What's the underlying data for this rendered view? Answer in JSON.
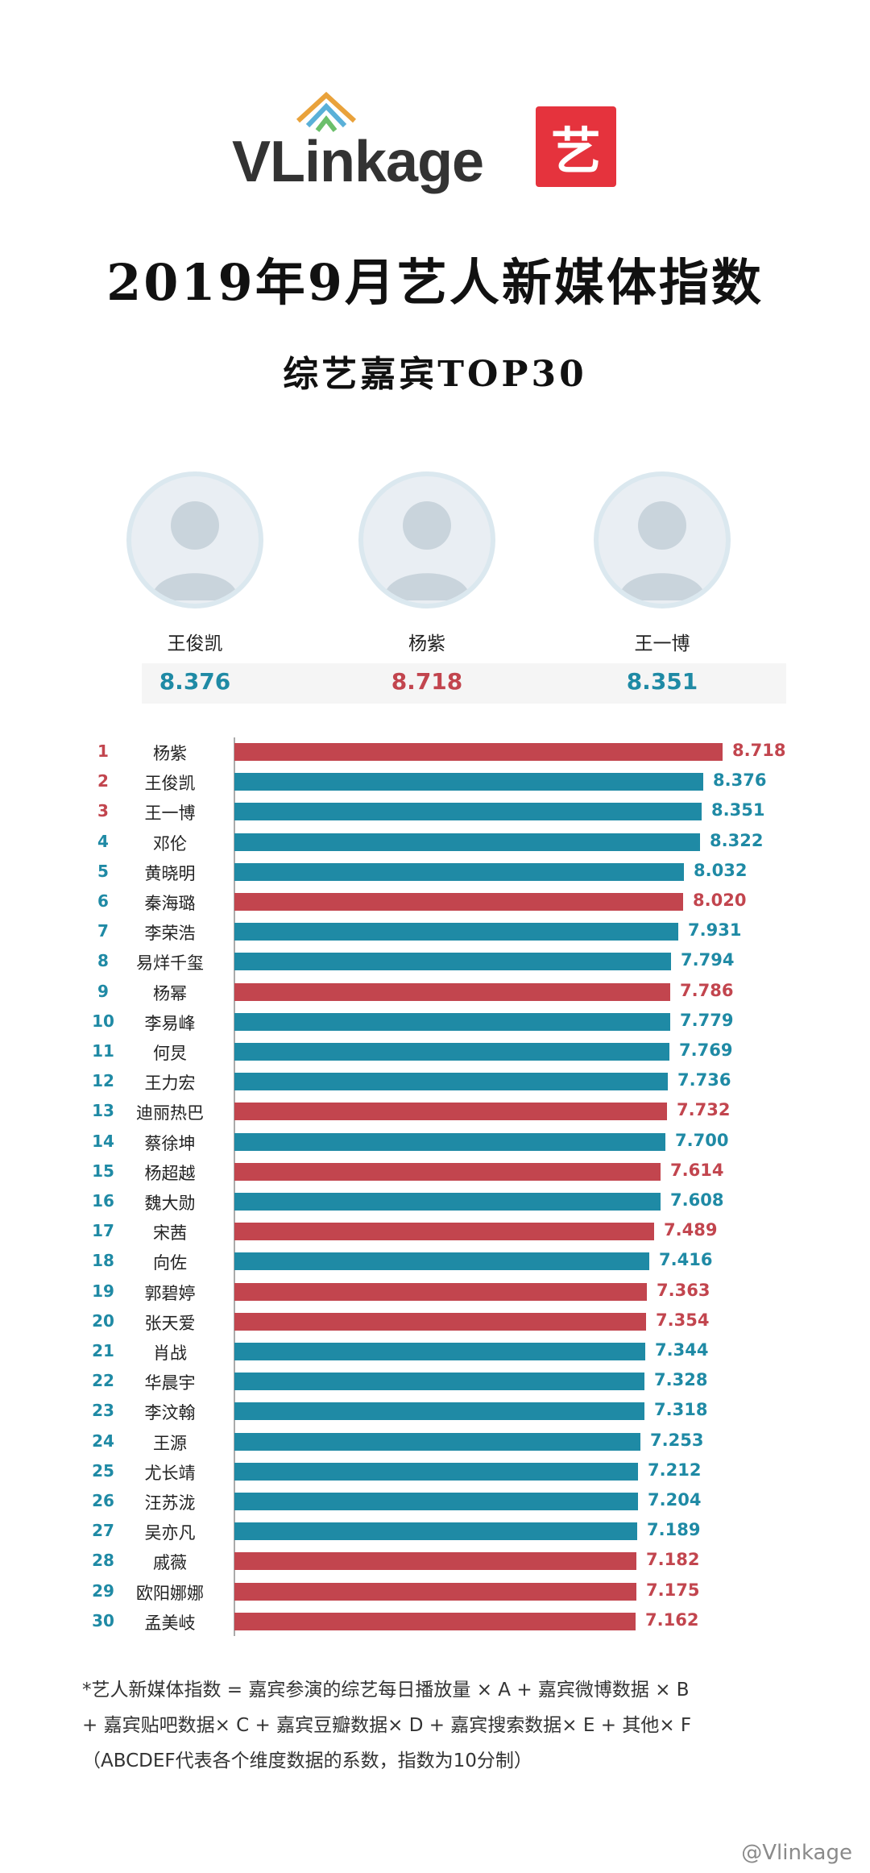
{
  "brand": {
    "wordmark": "VLinkage",
    "badge": "艺"
  },
  "title": "2019年9月艺人新媒体指数",
  "subtitle": "综艺嘉宾TOP30",
  "podium": [
    {
      "name": "王俊凯",
      "score": "8.376",
      "color": "#1f8aa5"
    },
    {
      "name": "杨紫",
      "score": "8.718",
      "color": "#c2454e"
    },
    {
      "name": "王一博",
      "score": "8.351",
      "color": "#1f8aa5"
    }
  ],
  "colors": {
    "red": "#c2454e",
    "teal": "#1f8aa5"
  },
  "chart_data": {
    "type": "bar",
    "orientation": "horizontal",
    "categories": [
      "杨紫",
      "王俊凯",
      "王一博",
      "邓伦",
      "黄晓明",
      "秦海璐",
      "李荣浩",
      "易烊千玺",
      "杨幂",
      "李易峰",
      "何炅",
      "王力宏",
      "迪丽热巴",
      "蔡徐坤",
      "杨超越",
      "魏大勋",
      "宋茜",
      "向佐",
      "郭碧婷",
      "张天爱",
      "肖战",
      "华晨宇",
      "李汶翰",
      "王源",
      "尤长靖",
      "汪苏泷",
      "吴亦凡",
      "戚薇",
      "欧阳娜娜",
      "孟美岐"
    ],
    "ranks": [
      "1",
      "2",
      "3",
      "4",
      "5",
      "6",
      "7",
      "8",
      "9",
      "10",
      "11",
      "12",
      "13",
      "14",
      "15",
      "16",
      "17",
      "18",
      "19",
      "20",
      "21",
      "22",
      "23",
      "24",
      "25",
      "26",
      "27",
      "28",
      "29",
      "30"
    ],
    "values": [
      8.718,
      8.376,
      8.351,
      8.322,
      8.032,
      8.02,
      7.931,
      7.794,
      7.786,
      7.779,
      7.769,
      7.736,
      7.732,
      7.7,
      7.614,
      7.608,
      7.489,
      7.416,
      7.363,
      7.354,
      7.344,
      7.328,
      7.318,
      7.253,
      7.212,
      7.204,
      7.189,
      7.182,
      7.175,
      7.162
    ],
    "labels": [
      "8.718",
      "8.376",
      "8.351",
      "8.322",
      "8.032",
      "8.020",
      "7.931",
      "7.794",
      "7.786",
      "7.779",
      "7.769",
      "7.736",
      "7.732",
      "7.700",
      "7.614",
      "7.608",
      "7.489",
      "7.416",
      "7.363",
      "7.354",
      "7.344",
      "7.328",
      "7.318",
      "7.253",
      "7.212",
      "7.204",
      "7.189",
      "7.182",
      "7.175",
      "7.162"
    ],
    "bar_colors": [
      "red",
      "teal",
      "teal",
      "teal",
      "teal",
      "red",
      "teal",
      "teal",
      "red",
      "teal",
      "teal",
      "teal",
      "red",
      "teal",
      "red",
      "teal",
      "red",
      "teal",
      "red",
      "red",
      "teal",
      "teal",
      "teal",
      "teal",
      "teal",
      "teal",
      "teal",
      "red",
      "red",
      "red"
    ],
    "rank_colors": [
      "red",
      "red",
      "red",
      "teal",
      "teal",
      "teal",
      "teal",
      "teal",
      "teal",
      "teal",
      "teal",
      "teal",
      "teal",
      "teal",
      "teal",
      "teal",
      "teal",
      "teal",
      "teal",
      "teal",
      "teal",
      "teal",
      "teal",
      "teal",
      "teal",
      "teal",
      "teal",
      "teal",
      "teal",
      "teal"
    ],
    "title": "",
    "xlabel": "",
    "ylabel": "",
    "xlim": [
      0,
      8.718
    ],
    "grid": false,
    "legend": "none"
  },
  "footnote": {
    "line1": "*艺人新媒体指数 = 嘉宾参演的综艺每日播放量 × A + 嘉宾微博数据 × B",
    "line2": "+ 嘉宾贴吧数据× C + 嘉宾豆瓣数据× D + 嘉宾搜索数据× E + 其他× F",
    "line3": "（ABCDEF代表各个维度数据的系数，指数为10分制）"
  },
  "watermark": "@Vlinkage"
}
